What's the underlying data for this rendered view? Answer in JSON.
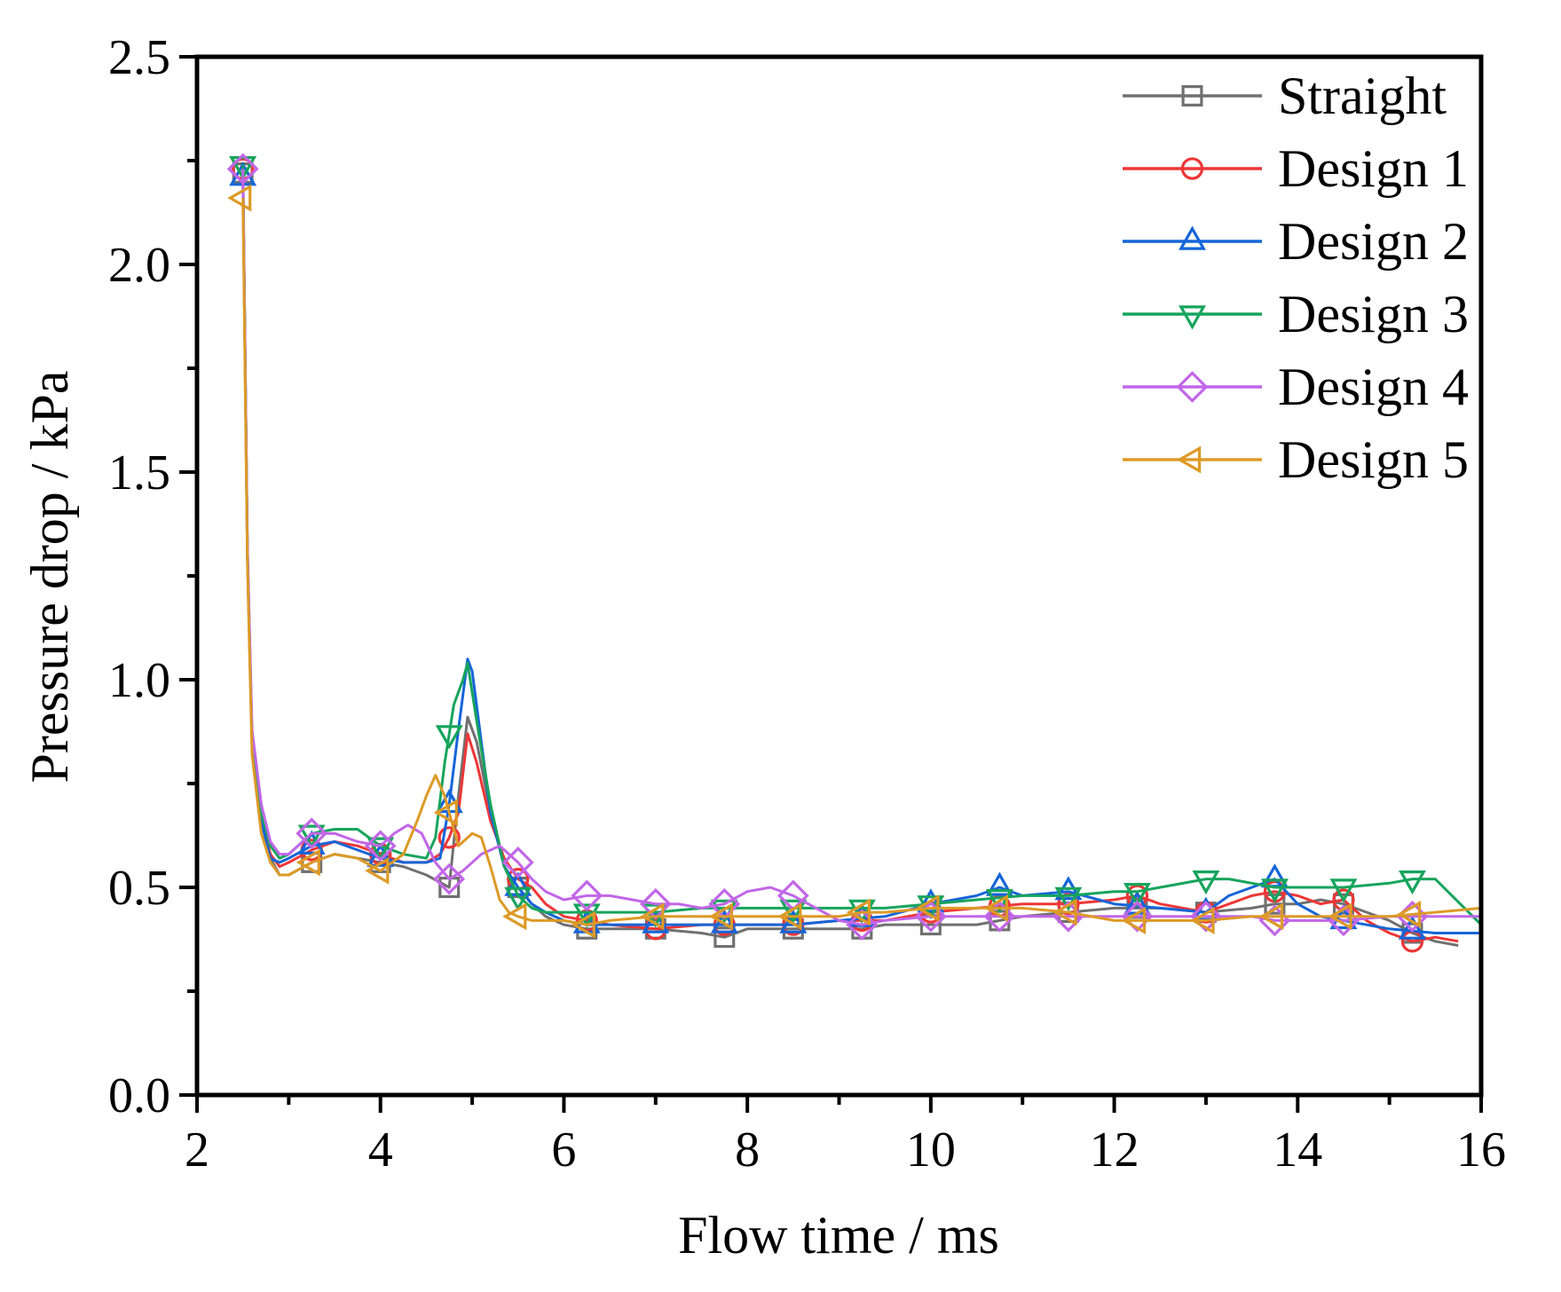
{
  "chart_data": {
    "type": "line",
    "title": "",
    "xlabel": "Flow time / ms",
    "ylabel": "Pressure drop / kPa",
    "xlim": [
      2,
      16
    ],
    "ylim": [
      0.0,
      2.5
    ],
    "xticks": [
      2,
      4,
      6,
      8,
      10,
      12,
      14,
      16
    ],
    "xtick_labels": [
      "2",
      "4",
      "6",
      "8",
      "10",
      "12",
      "14",
      "16"
    ],
    "yticks": [
      0.0,
      0.5,
      1.0,
      1.5,
      2.0,
      2.5
    ],
    "ytick_labels": [
      "0.0",
      "0.5",
      "1.0",
      "1.5",
      "2.0",
      "2.5"
    ],
    "grid": false,
    "legend_position": "top-right",
    "series": [
      {
        "name": "Straight",
        "color": "#707070",
        "marker": "square",
        "x": [
          2.5,
          2.55,
          2.6,
          2.7,
          2.8,
          2.9,
          3.0,
          3.25,
          3.5,
          3.75,
          4.0,
          4.25,
          4.5,
          4.75,
          4.85,
          4.95,
          5.05,
          5.2,
          5.35,
          5.5,
          5.65,
          5.8,
          6.0,
          6.25,
          6.5,
          7.0,
          7.5,
          7.75,
          8.0,
          8.5,
          9.0,
          9.25,
          9.5,
          10.0,
          10.5,
          10.75,
          11.0,
          11.5,
          12.0,
          12.25,
          12.5,
          13.0,
          13.5,
          13.75,
          14.0,
          14.25,
          14.5,
          15.0,
          15.25,
          15.5,
          15.75
        ],
        "y": [
          2.22,
          1.3,
          0.85,
          0.66,
          0.57,
          0.53,
          0.53,
          0.56,
          0.58,
          0.57,
          0.56,
          0.55,
          0.53,
          0.5,
          0.72,
          0.91,
          0.85,
          0.68,
          0.55,
          0.5,
          0.46,
          0.43,
          0.41,
          0.4,
          0.4,
          0.4,
          0.39,
          0.38,
          0.4,
          0.4,
          0.4,
          0.4,
          0.41,
          0.41,
          0.41,
          0.42,
          0.43,
          0.44,
          0.45,
          0.45,
          0.45,
          0.44,
          0.45,
          0.46,
          0.46,
          0.47,
          0.46,
          0.42,
          0.39,
          0.37,
          0.36
        ],
        "markers_x": [
          2.5,
          3.25,
          4.0,
          4.75,
          5.5,
          6.25,
          7.0,
          7.75,
          8.5,
          9.25,
          10.0,
          10.75,
          11.5,
          12.25,
          13.0,
          13.75,
          14.5,
          15.25
        ]
      },
      {
        "name": "Design 1",
        "color": "#ee3636",
        "marker": "circle",
        "x": [
          2.5,
          2.55,
          2.6,
          2.7,
          2.8,
          2.9,
          3.0,
          3.25,
          3.5,
          3.75,
          4.0,
          4.25,
          4.5,
          4.65,
          4.75,
          4.85,
          4.95,
          5.05,
          5.2,
          5.35,
          5.5,
          5.65,
          5.8,
          6.0,
          6.25,
          6.5,
          7.0,
          7.5,
          8.0,
          8.5,
          9.0,
          9.5,
          10.0,
          10.5,
          11.0,
          11.5,
          12.0,
          12.25,
          12.5,
          13.0,
          13.5,
          13.75,
          14.0,
          14.25,
          14.5,
          14.75,
          15.0,
          15.25,
          15.5,
          15.75
        ],
        "y": [
          2.23,
          1.3,
          0.86,
          0.67,
          0.58,
          0.55,
          0.56,
          0.59,
          0.61,
          0.6,
          0.58,
          0.56,
          0.56,
          0.58,
          0.62,
          0.68,
          0.87,
          0.8,
          0.66,
          0.57,
          0.52,
          0.5,
          0.46,
          0.43,
          0.42,
          0.41,
          0.4,
          0.41,
          0.41,
          0.41,
          0.42,
          0.42,
          0.44,
          0.45,
          0.46,
          0.46,
          0.47,
          0.48,
          0.46,
          0.44,
          0.48,
          0.49,
          0.48,
          0.46,
          0.47,
          0.42,
          0.39,
          0.37,
          0.38,
          0.37
        ],
        "markers_x": [
          2.5,
          3.25,
          4.0,
          4.75,
          5.5,
          6.25,
          7.0,
          7.75,
          8.5,
          9.25,
          10.0,
          10.75,
          11.5,
          12.25,
          13.0,
          13.75,
          14.5,
          15.25
        ]
      },
      {
        "name": "Design 2",
        "color": "#1565d8",
        "marker": "triangle-up",
        "x": [
          2.5,
          2.55,
          2.6,
          2.7,
          2.8,
          2.9,
          3.0,
          3.25,
          3.5,
          3.75,
          4.0,
          4.25,
          4.5,
          4.65,
          4.75,
          4.85,
          4.95,
          5.0,
          5.1,
          5.2,
          5.35,
          5.5,
          5.65,
          5.8,
          6.0,
          6.25,
          6.5,
          7.0,
          7.5,
          8.0,
          8.5,
          9.0,
          9.5,
          10.0,
          10.5,
          10.75,
          11.0,
          11.5,
          12.0,
          12.5,
          13.0,
          13.25,
          13.5,
          13.75,
          14.0,
          14.25,
          14.5,
          15.0,
          15.5,
          16.0
        ],
        "y": [
          2.21,
          1.3,
          0.85,
          0.66,
          0.57,
          0.56,
          0.57,
          0.6,
          0.61,
          0.59,
          0.57,
          0.56,
          0.56,
          0.57,
          0.7,
          0.88,
          1.05,
          1.02,
          0.85,
          0.68,
          0.55,
          0.5,
          0.46,
          0.44,
          0.42,
          0.41,
          0.41,
          0.41,
          0.41,
          0.41,
          0.41,
          0.42,
          0.43,
          0.46,
          0.48,
          0.5,
          0.48,
          0.49,
          0.46,
          0.45,
          0.44,
          0.48,
          0.5,
          0.52,
          0.46,
          0.43,
          0.42,
          0.4,
          0.39,
          0.39
        ],
        "markers_x": [
          2.5,
          3.25,
          4.0,
          4.75,
          5.5,
          6.25,
          7.0,
          7.75,
          8.5,
          9.25,
          10.0,
          10.75,
          11.5,
          12.25,
          13.0,
          13.75,
          14.5,
          15.25
        ]
      },
      {
        "name": "Design 3",
        "color": "#17a45c",
        "marker": "triangle-down",
        "x": [
          2.5,
          2.55,
          2.6,
          2.7,
          2.8,
          2.9,
          3.0,
          3.25,
          3.5,
          3.75,
          4.0,
          4.25,
          4.5,
          4.6,
          4.7,
          4.8,
          4.9,
          4.95,
          5.05,
          5.2,
          5.35,
          5.5,
          5.65,
          5.8,
          6.0,
          6.25,
          6.5,
          7.0,
          7.5,
          8.0,
          8.5,
          9.0,
          9.5,
          10.0,
          10.5,
          11.0,
          11.5,
          12.0,
          12.25,
          12.5,
          13.0,
          13.25,
          13.5,
          13.75,
          14.0,
          14.5,
          15.0,
          15.25,
          15.5,
          16.0
        ],
        "y": [
          2.24,
          1.32,
          0.87,
          0.68,
          0.6,
          0.57,
          0.58,
          0.63,
          0.64,
          0.64,
          0.6,
          0.58,
          0.57,
          0.62,
          0.8,
          0.94,
          1.0,
          1.04,
          0.9,
          0.7,
          0.55,
          0.48,
          0.45,
          0.44,
          0.44,
          0.44,
          0.44,
          0.44,
          0.45,
          0.45,
          0.45,
          0.45,
          0.45,
          0.46,
          0.47,
          0.48,
          0.48,
          0.49,
          0.49,
          0.5,
          0.52,
          0.52,
          0.51,
          0.5,
          0.5,
          0.5,
          0.51,
          0.52,
          0.52,
          0.41
        ],
        "markers_x": [
          2.5,
          3.25,
          4.0,
          4.75,
          5.5,
          6.25,
          7.0,
          7.75,
          8.5,
          9.25,
          10.0,
          10.75,
          11.5,
          12.25,
          13.0,
          13.75,
          14.5,
          15.25
        ]
      },
      {
        "name": "Design 4",
        "color": "#c266e8",
        "marker": "diamond",
        "x": [
          2.5,
          2.55,
          2.6,
          2.7,
          2.8,
          2.9,
          3.0,
          3.25,
          3.5,
          3.75,
          4.0,
          4.15,
          4.3,
          4.45,
          4.6,
          4.75,
          4.9,
          5.1,
          5.3,
          5.5,
          5.65,
          5.8,
          6.0,
          6.25,
          6.5,
          6.75,
          7.0,
          7.25,
          7.5,
          7.75,
          8.0,
          8.25,
          8.5,
          8.75,
          9.0,
          9.25,
          9.5,
          10.0,
          10.5,
          11.0,
          11.5,
          12.0,
          12.5,
          13.0,
          13.5,
          13.75,
          14.0,
          14.5,
          15.0,
          15.5,
          16.0
        ],
        "y": [
          2.23,
          1.32,
          0.88,
          0.7,
          0.61,
          0.58,
          0.58,
          0.63,
          0.63,
          0.61,
          0.6,
          0.63,
          0.65,
          0.63,
          0.56,
          0.52,
          0.54,
          0.58,
          0.6,
          0.56,
          0.52,
          0.49,
          0.47,
          0.48,
          0.48,
          0.47,
          0.46,
          0.46,
          0.45,
          0.46,
          0.49,
          0.5,
          0.48,
          0.45,
          0.42,
          0.41,
          0.42,
          0.43,
          0.43,
          0.43,
          0.43,
          0.43,
          0.43,
          0.43,
          0.43,
          0.42,
          0.42,
          0.42,
          0.43,
          0.43,
          0.43
        ],
        "markers_x": [
          2.5,
          3.25,
          4.0,
          4.75,
          5.5,
          6.25,
          7.0,
          7.75,
          8.5,
          9.25,
          10.0,
          10.75,
          11.5,
          12.25,
          13.0,
          13.75,
          14.5,
          15.25
        ]
      },
      {
        "name": "Design 5",
        "color": "#dd9a26",
        "marker": "triangle-left",
        "x": [
          2.5,
          2.55,
          2.6,
          2.7,
          2.8,
          2.9,
          3.0,
          3.25,
          3.5,
          3.75,
          4.0,
          4.25,
          4.4,
          4.5,
          4.6,
          4.7,
          4.75,
          4.85,
          5.0,
          5.1,
          5.2,
          5.3,
          5.4,
          5.5,
          5.65,
          5.8,
          6.0,
          6.25,
          6.5,
          7.0,
          7.5,
          8.0,
          8.5,
          9.0,
          9.25,
          9.5,
          10.0,
          10.5,
          11.0,
          11.5,
          12.0,
          12.5,
          13.0,
          13.5,
          14.0,
          14.5,
          15.0,
          15.5,
          16.0
        ],
        "y": [
          2.16,
          1.28,
          0.82,
          0.63,
          0.56,
          0.53,
          0.53,
          0.56,
          0.58,
          0.57,
          0.54,
          0.58,
          0.66,
          0.72,
          0.77,
          0.72,
          0.68,
          0.6,
          0.63,
          0.62,
          0.55,
          0.47,
          0.44,
          0.43,
          0.42,
          0.42,
          0.42,
          0.41,
          0.42,
          0.43,
          0.43,
          0.43,
          0.43,
          0.43,
          0.44,
          0.44,
          0.45,
          0.45,
          0.45,
          0.44,
          0.42,
          0.42,
          0.42,
          0.43,
          0.43,
          0.43,
          0.43,
          0.44,
          0.45
        ],
        "markers_x": [
          2.5,
          3.25,
          4.0,
          4.75,
          5.5,
          6.25,
          7.0,
          7.75,
          8.5,
          9.25,
          10.0,
          10.75,
          11.5,
          12.25,
          13.0,
          13.75,
          14.5,
          15.25
        ]
      }
    ]
  }
}
